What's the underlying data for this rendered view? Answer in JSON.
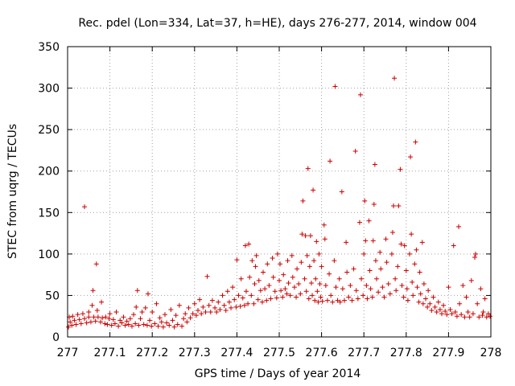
{
  "chart_data": {
    "type": "scatter",
    "title": "Rec. pdel (Lon=334, Lat=37, h=HE), days 276-277, 2014, window 004",
    "xlabel": "GPS time / Days of year 2014",
    "ylabel": "STEC from uqrg / TECUs",
    "xlim": [
      277,
      278
    ],
    "ylim": [
      0,
      350
    ],
    "xticks": [
      277,
      277.1,
      277.2,
      277.3,
      277.4,
      277.5,
      277.6,
      277.7,
      277.8,
      277.9,
      278
    ],
    "xtick_labels": [
      "277",
      "277.1",
      "277.2",
      "277.3",
      "277.4",
      "277.5",
      "277.6",
      "277.7",
      "277.8",
      "277.9",
      "278"
    ],
    "yticks": [
      0,
      50,
      100,
      150,
      200,
      250,
      300,
      350
    ],
    "ytick_labels": [
      "0",
      "50",
      "100",
      "150",
      "200",
      "250",
      "300",
      "350"
    ],
    "grid": true,
    "marker": "+",
    "color": "#cc0000",
    "series": [
      {
        "name": "STEC",
        "points": [
          [
            277.002,
            12
          ],
          [
            277.004,
            24
          ],
          [
            277.006,
            18
          ],
          [
            277.01,
            14
          ],
          [
            277.012,
            25
          ],
          [
            277.016,
            20
          ],
          [
            277.02,
            15
          ],
          [
            277.024,
            27
          ],
          [
            277.028,
            21
          ],
          [
            277.032,
            16
          ],
          [
            277.036,
            28
          ],
          [
            277.04,
            22
          ],
          [
            277.04,
            157
          ],
          [
            277.045,
            17
          ],
          [
            277.05,
            30
          ],
          [
            277.05,
            24
          ],
          [
            277.055,
            18
          ],
          [
            277.058,
            38
          ],
          [
            277.06,
            56
          ],
          [
            277.062,
            24
          ],
          [
            277.066,
            19
          ],
          [
            277.068,
            88
          ],
          [
            277.07,
            32
          ],
          [
            277.072,
            24
          ],
          [
            277.078,
            18
          ],
          [
            277.08,
            42
          ],
          [
            277.082,
            23
          ],
          [
            277.088,
            16
          ],
          [
            277.09,
            24
          ],
          [
            277.094,
            15
          ],
          [
            277.098,
            22
          ],
          [
            277.1,
            28
          ],
          [
            277.104,
            14
          ],
          [
            277.108,
            21
          ],
          [
            277.112,
            16
          ],
          [
            277.115,
            30
          ],
          [
            277.12,
            13
          ],
          [
            277.124,
            20
          ],
          [
            277.128,
            17
          ],
          [
            277.132,
            24
          ],
          [
            277.136,
            14
          ],
          [
            277.14,
            19
          ],
          [
            277.144,
            15
          ],
          [
            277.148,
            22
          ],
          [
            277.152,
            13
          ],
          [
            277.156,
            27
          ],
          [
            277.16,
            16
          ],
          [
            277.162,
            36
          ],
          [
            277.165,
            56
          ],
          [
            277.168,
            14
          ],
          [
            277.172,
            22
          ],
          [
            277.176,
            30
          ],
          [
            277.18,
            15
          ],
          [
            277.184,
            35
          ],
          [
            277.188,
            14
          ],
          [
            277.19,
            52
          ],
          [
            277.194,
            20
          ],
          [
            277.198,
            13
          ],
          [
            277.2,
            30
          ],
          [
            277.206,
            16
          ],
          [
            277.21,
            40
          ],
          [
            277.214,
            13
          ],
          [
            277.218,
            23
          ],
          [
            277.222,
            18
          ],
          [
            277.226,
            12
          ],
          [
            277.23,
            27
          ],
          [
            277.234,
            17
          ],
          [
            277.24,
            14
          ],
          [
            277.244,
            33
          ],
          [
            277.248,
            20
          ],
          [
            277.252,
            12
          ],
          [
            277.256,
            26
          ],
          [
            277.26,
            15
          ],
          [
            277.264,
            38
          ],
          [
            277.27,
            13
          ],
          [
            277.274,
            22
          ],
          [
            277.278,
            28
          ],
          [
            277.282,
            18
          ],
          [
            277.286,
            35
          ],
          [
            277.29,
            23
          ],
          [
            277.296,
            28
          ],
          [
            277.3,
            40
          ],
          [
            277.304,
            26
          ],
          [
            277.308,
            32
          ],
          [
            277.312,
            45
          ],
          [
            277.316,
            28
          ],
          [
            277.32,
            36
          ],
          [
            277.326,
            30
          ],
          [
            277.33,
            73
          ],
          [
            277.334,
            38
          ],
          [
            277.338,
            30
          ],
          [
            277.342,
            44
          ],
          [
            277.348,
            35
          ],
          [
            277.352,
            30
          ],
          [
            277.356,
            42
          ],
          [
            277.36,
            33
          ],
          [
            277.366,
            50
          ],
          [
            277.37,
            38
          ],
          [
            277.374,
            32
          ],
          [
            277.378,
            55
          ],
          [
            277.382,
            42
          ],
          [
            277.386,
            35
          ],
          [
            277.39,
            60
          ],
          [
            277.394,
            45
          ],
          [
            277.398,
            36
          ],
          [
            277.4,
            93
          ],
          [
            277.404,
            50
          ],
          [
            277.408,
            37
          ],
          [
            277.41,
            70
          ],
          [
            277.414,
            47
          ],
          [
            277.418,
            38
          ],
          [
            277.42,
            110
          ],
          [
            277.422,
            55
          ],
          [
            277.426,
            40
          ],
          [
            277.428,
            112
          ],
          [
            277.43,
            72
          ],
          [
            277.434,
            50
          ],
          [
            277.436,
            92
          ],
          [
            277.44,
            40
          ],
          [
            277.442,
            64
          ],
          [
            277.444,
            85
          ],
          [
            277.446,
            98
          ],
          [
            277.45,
            45
          ],
          [
            277.452,
            68
          ],
          [
            277.456,
            56
          ],
          [
            277.46,
            42
          ],
          [
            277.462,
            78
          ],
          [
            277.466,
            58
          ],
          [
            277.47,
            44
          ],
          [
            277.472,
            88
          ],
          [
            277.476,
            62
          ],
          [
            277.48,
            46
          ],
          [
            277.484,
            95
          ],
          [
            277.486,
            72
          ],
          [
            277.49,
            55
          ],
          [
            277.494,
            47
          ],
          [
            277.496,
            100
          ],
          [
            277.5,
            68
          ],
          [
            277.502,
            88
          ],
          [
            277.504,
            56
          ],
          [
            277.508,
            48
          ],
          [
            277.51,
            75
          ],
          [
            277.514,
            58
          ],
          [
            277.518,
            52
          ],
          [
            277.52,
            92
          ],
          [
            277.522,
            65
          ],
          [
            277.526,
            50
          ],
          [
            277.53,
            98
          ],
          [
            277.532,
            72
          ],
          [
            277.536,
            60
          ],
          [
            277.54,
            48
          ],
          [
            277.542,
            82
          ],
          [
            277.546,
            64
          ],
          [
            277.55,
            52
          ],
          [
            277.552,
            90
          ],
          [
            277.554,
            124
          ],
          [
            277.556,
            164
          ],
          [
            277.56,
            70
          ],
          [
            277.562,
            122
          ],
          [
            277.564,
            55
          ],
          [
            277.566,
            98
          ],
          [
            277.568,
            203
          ],
          [
            277.57,
            46
          ],
          [
            277.572,
            85
          ],
          [
            277.574,
            122
          ],
          [
            277.576,
            65
          ],
          [
            277.578,
            50
          ],
          [
            277.58,
            177
          ],
          [
            277.582,
            92
          ],
          [
            277.584,
            44
          ],
          [
            277.586,
            70
          ],
          [
            277.588,
            115
          ],
          [
            277.59,
            55
          ],
          [
            277.592,
            42
          ],
          [
            277.594,
            100
          ],
          [
            277.596,
            64
          ],
          [
            277.598,
            48
          ],
          [
            277.6,
            85
          ],
          [
            277.602,
            43
          ],
          [
            277.606,
            135
          ],
          [
            277.608,
            118
          ],
          [
            277.61,
            62
          ],
          [
            277.614,
            44
          ],
          [
            277.618,
            76
          ],
          [
            277.62,
            212
          ],
          [
            277.622,
            50
          ],
          [
            277.626,
            42
          ],
          [
            277.63,
            92
          ],
          [
            277.632,
            302
          ],
          [
            277.634,
            60
          ],
          [
            277.638,
            44
          ],
          [
            277.642,
            70
          ],
          [
            277.644,
            42
          ],
          [
            277.648,
            175
          ],
          [
            277.65,
            58
          ],
          [
            277.654,
            44
          ],
          [
            277.658,
            114
          ],
          [
            277.66,
            78
          ],
          [
            277.664,
            48
          ],
          [
            277.668,
            62
          ],
          [
            277.672,
            44
          ],
          [
            277.676,
            82
          ],
          [
            277.68,
            224
          ],
          [
            277.682,
            56
          ],
          [
            277.686,
            46
          ],
          [
            277.69,
            138
          ],
          [
            277.692,
            292
          ],
          [
            277.694,
            70
          ],
          [
            277.698,
            50
          ],
          [
            277.7,
            100
          ],
          [
            277.702,
            164
          ],
          [
            277.704,
            116
          ],
          [
            277.706,
            62
          ],
          [
            277.708,
            46
          ],
          [
            277.712,
            140
          ],
          [
            277.714,
            80
          ],
          [
            277.716,
            58
          ],
          [
            277.72,
            48
          ],
          [
            277.722,
            116
          ],
          [
            277.724,
            160
          ],
          [
            277.726,
            208
          ],
          [
            277.728,
            92
          ],
          [
            277.73,
            70
          ],
          [
            277.734,
            54
          ],
          [
            277.738,
            102
          ],
          [
            277.74,
            82
          ],
          [
            277.744,
            60
          ],
          [
            277.748,
            48
          ],
          [
            277.752,
            118
          ],
          [
            277.754,
            90
          ],
          [
            277.758,
            64
          ],
          [
            277.762,
            52
          ],
          [
            277.766,
            100
          ],
          [
            277.768,
            126
          ],
          [
            277.77,
            158
          ],
          [
            277.772,
            312
          ],
          [
            277.774,
            70
          ],
          [
            277.776,
            56
          ],
          [
            277.78,
            85
          ],
          [
            277.782,
            158
          ],
          [
            277.786,
            202
          ],
          [
            277.788,
            112
          ],
          [
            277.79,
            62
          ],
          [
            277.794,
            48
          ],
          [
            277.796,
            110
          ],
          [
            277.8,
            80
          ],
          [
            277.802,
            58
          ],
          [
            277.804,
            44
          ],
          [
            277.808,
            100
          ],
          [
            277.81,
            217
          ],
          [
            277.812,
            124
          ],
          [
            277.814,
            66
          ],
          [
            277.816,
            50
          ],
          [
            277.82,
            88
          ],
          [
            277.822,
            235
          ],
          [
            277.824,
            105
          ],
          [
            277.826,
            60
          ],
          [
            277.83,
            42
          ],
          [
            277.832,
            78
          ],
          [
            277.834,
            52
          ],
          [
            277.838,
            114
          ],
          [
            277.84,
            40
          ],
          [
            277.842,
            64
          ],
          [
            277.846,
            46
          ],
          [
            277.85,
            36
          ],
          [
            277.852,
            56
          ],
          [
            277.856,
            40
          ],
          [
            277.86,
            32
          ],
          [
            277.864,
            48
          ],
          [
            277.868,
            36
          ],
          [
            277.872,
            30
          ],
          [
            277.876,
            42
          ],
          [
            277.88,
            33
          ],
          [
            277.884,
            28
          ],
          [
            277.888,
            38
          ],
          [
            277.892,
            31
          ],
          [
            277.896,
            27
          ],
          [
            277.9,
            60
          ],
          [
            277.904,
            33
          ],
          [
            277.908,
            28
          ],
          [
            277.912,
            110
          ],
          [
            277.916,
            30
          ],
          [
            277.92,
            25
          ],
          [
            277.924,
            133
          ],
          [
            277.926,
            40
          ],
          [
            277.93,
            27
          ],
          [
            277.934,
            62
          ],
          [
            277.938,
            24
          ],
          [
            277.942,
            48
          ],
          [
            277.946,
            30
          ],
          [
            277.95,
            24
          ],
          [
            277.954,
            68
          ],
          [
            277.958,
            28
          ],
          [
            277.962,
            96
          ],
          [
            277.964,
            100
          ],
          [
            277.968,
            40
          ],
          [
            277.972,
            24
          ],
          [
            277.976,
            58
          ],
          [
            277.98,
            26
          ],
          [
            277.982,
            30
          ],
          [
            277.986,
            46
          ],
          [
            277.99,
            24
          ],
          [
            277.994,
            28
          ],
          [
            277.998,
            25
          ]
        ]
      }
    ]
  }
}
